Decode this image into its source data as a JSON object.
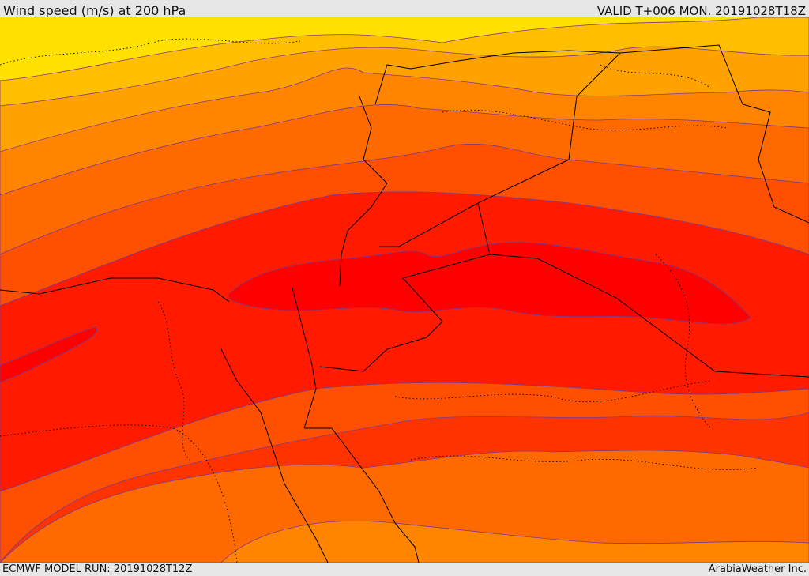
{
  "header": {
    "title": "Wind speed (m/s) at 200 hPa",
    "valid_time": "VALID T+006 MON. 20191028T18Z"
  },
  "footer": {
    "model_run": "ECMWF MODEL RUN: 20191028T12Z",
    "credit": "ArabiaWeather Inc."
  },
  "colors": {
    "band_1": "#ffe000",
    "band_2": "#ffbf00",
    "band_3": "#ffa200",
    "band_4": "#ff8400",
    "band_5": "#ff6a00",
    "band_6": "#ff4f00",
    "band_7": "#ff3300",
    "band_8": "#ff1a00",
    "band_9": "#ff0000",
    "contour_line": "#7a3a8c",
    "border_line": "#000000"
  }
}
